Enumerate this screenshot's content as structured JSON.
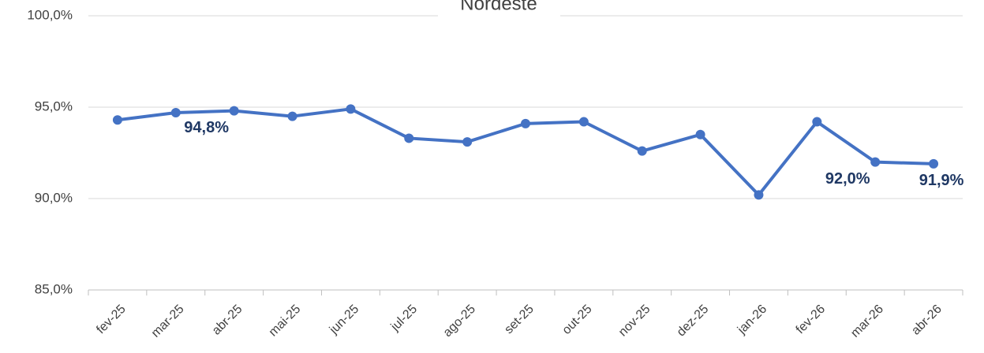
{
  "chart_data": {
    "type": "line",
    "title": "Nordeste",
    "categories": [
      "fev-25",
      "mar-25",
      "abr-25",
      "mai-25",
      "jun-25",
      "jul-25",
      "ago-25",
      "set-25",
      "out-25",
      "nov-25",
      "dez-25",
      "jan-26",
      "fev-26",
      "mar-26",
      "abr-26"
    ],
    "values": [
      94.3,
      94.7,
      94.8,
      94.5,
      94.9,
      93.3,
      93.1,
      94.1,
      94.2,
      92.6,
      93.5,
      90.2,
      94.2,
      92.0,
      91.9
    ],
    "value_labels": [
      null,
      null,
      "94,8%",
      null,
      null,
      null,
      null,
      null,
      null,
      null,
      null,
      null,
      null,
      "92,0%",
      "91,9%"
    ],
    "color": "#4472c4",
    "ylim": [
      85,
      100
    ],
    "yticks": [
      {
        "value": 85,
        "label": "85,0%"
      },
      {
        "value": 90,
        "label": "90,0%"
      },
      {
        "value": 95,
        "label": "95,0%"
      },
      {
        "value": 100,
        "label": "100,0%"
      }
    ],
    "grid": true
  }
}
